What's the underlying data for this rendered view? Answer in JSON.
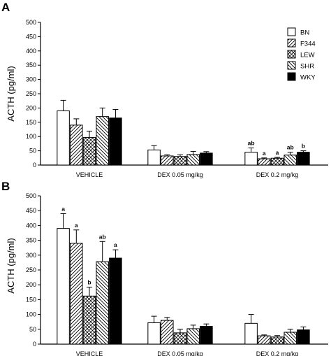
{
  "chart_data": [
    {
      "type": "bar",
      "panel": "A",
      "ylabel": "ACTH (pg/ml)",
      "ylim": [
        0,
        500
      ],
      "yticks": [
        0,
        50,
        100,
        150,
        200,
        250,
        300,
        350,
        400,
        450,
        500
      ],
      "categories": [
        "VEHICLE",
        "DEX 0.05 mg/kg",
        "DEX 0.2 mg/kg"
      ],
      "legend_position": "top-right",
      "series": [
        {
          "name": "BN",
          "values": [
            190,
            53,
            45
          ],
          "errors": [
            37,
            15,
            15
          ],
          "annotations": [
            "",
            "",
            "ab"
          ]
        },
        {
          "name": "F344",
          "values": [
            140,
            32,
            22
          ],
          "errors": [
            22,
            4,
            3
          ],
          "annotations": [
            "",
            "",
            "a"
          ]
        },
        {
          "name": "LEW",
          "values": [
            97,
            30,
            24
          ],
          "errors": [
            22,
            6,
            3
          ],
          "annotations": [
            "",
            "",
            "a"
          ]
        },
        {
          "name": "SHR",
          "values": [
            170,
            37,
            35
          ],
          "errors": [
            30,
            11,
            10
          ],
          "annotations": [
            "",
            "",
            "ab"
          ]
        },
        {
          "name": "WKY",
          "values": [
            165,
            42,
            45
          ],
          "errors": [
            30,
            5,
            5
          ],
          "annotations": [
            "",
            "",
            "b"
          ]
        }
      ]
    },
    {
      "type": "bar",
      "panel": "B",
      "ylabel": "ACTH (pg/ml)",
      "ylim": [
        0,
        500
      ],
      "yticks": [
        0,
        50,
        100,
        150,
        200,
        250,
        300,
        350,
        400,
        450,
        500
      ],
      "categories": [
        "VEHICLE",
        "DEX 0.05 mg/kg",
        "DEX 0.2 mg/kg"
      ],
      "series": [
        {
          "name": "BN",
          "values": [
            390,
            72,
            70
          ],
          "errors": [
            50,
            22,
            30
          ],
          "annotations": [
            "a",
            "",
            ""
          ]
        },
        {
          "name": "F344",
          "values": [
            340,
            80,
            28
          ],
          "errors": [
            45,
            10,
            3
          ],
          "annotations": [
            "a",
            "",
            ""
          ]
        },
        {
          "name": "LEW",
          "values": [
            162,
            38,
            24
          ],
          "errors": [
            30,
            12,
            5
          ],
          "annotations": [
            "b",
            "",
            ""
          ]
        },
        {
          "name": "SHR",
          "values": [
            278,
            52,
            40
          ],
          "errors": [
            68,
            12,
            10
          ],
          "annotations": [
            "ab",
            "",
            ""
          ]
        },
        {
          "name": "WKY",
          "values": [
            290,
            60,
            48
          ],
          "errors": [
            28,
            8,
            10
          ],
          "annotations": [
            "a",
            "",
            ""
          ]
        }
      ]
    }
  ]
}
